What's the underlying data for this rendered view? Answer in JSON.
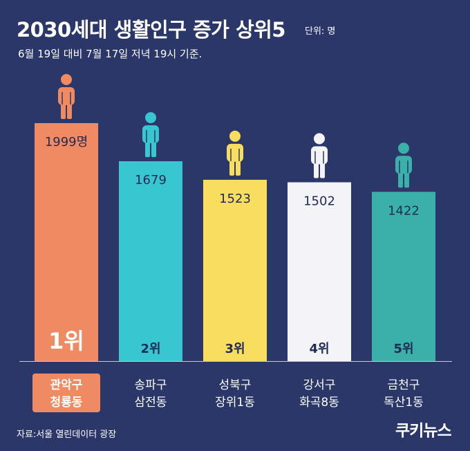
{
  "header": {
    "title": "2030세대 생활인구 증가 상위5",
    "unit": "단위: 명",
    "subtitle": "6월 19일 대비 7월 17일 저녁 19시 기준."
  },
  "footer": {
    "source": "자료:서울 열린데이터 광장",
    "logo": "쿠키뉴스"
  },
  "colors": {
    "background": "#2a3768",
    "bar_1": "#ef8a62",
    "bar_2": "#38c6d0",
    "bar_3": "#f9dd5e",
    "bar_4": "#f4f4f6",
    "bar_5": "#3ab0a8"
  },
  "chart_data": {
    "type": "bar",
    "title": "2030세대 생활인구 증가 상위5",
    "unit": "단위: 명",
    "categories": [
      "관악구 청룡동",
      "송파구 삼전동",
      "성북구 장위1동",
      "강서구 화곡8동",
      "금천구 독산1동"
    ],
    "category_lines": [
      [
        "관악구",
        "청룡동"
      ],
      [
        "송파구",
        "삼전동"
      ],
      [
        "성북구",
        "장위1동"
      ],
      [
        "강서구",
        "화곡8동"
      ],
      [
        "금천구",
        "독산1동"
      ]
    ],
    "values": [
      1999,
      1679,
      1523,
      1502,
      1422
    ],
    "value_labels": [
      "1999명",
      "1679",
      "1523",
      "1502",
      "1422"
    ],
    "ranks": [
      "1위",
      "2위",
      "3위",
      "4위",
      "5위"
    ],
    "bar_colors": [
      "#ef8a62",
      "#38c6d0",
      "#f9dd5e",
      "#f4f4f6",
      "#3ab0a8"
    ],
    "icon": "person-icon",
    "icon_colors": [
      "#ef8a62",
      "#38c6d0",
      "#f9dd5e",
      "#f4f4f6",
      "#3ab0a8"
    ],
    "highlighted_category": 0,
    "highlight_color": "#ef8a62"
  }
}
